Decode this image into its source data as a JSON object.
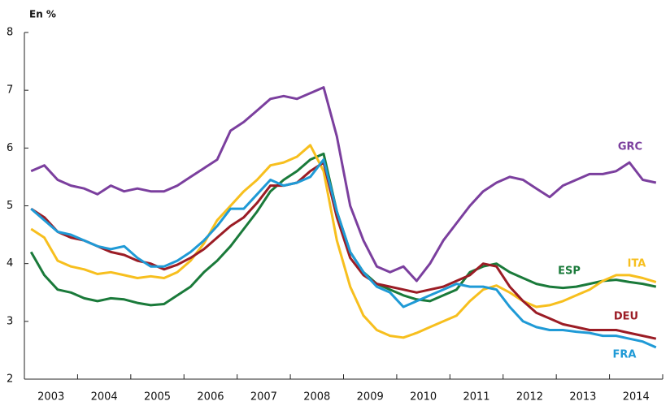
{
  "chart_data": {
    "type": "line",
    "unit_label": "En %",
    "categories": [
      null,
      "2003",
      null,
      null,
      null,
      "2004",
      null,
      null,
      null,
      "2005",
      null,
      null,
      null,
      "2006",
      null,
      null,
      null,
      "2007",
      null,
      null,
      null,
      "2008",
      null,
      null,
      null,
      "2009",
      null,
      null,
      null,
      "2010",
      null,
      null,
      null,
      "2011",
      null,
      null,
      null,
      "2012",
      null,
      null,
      null,
      "2013",
      null,
      null,
      null,
      "2014",
      null,
      null
    ],
    "series": [
      {
        "name": "GRC",
        "color": "#7b3f9e",
        "values": [
          5.6,
          5.7,
          5.45,
          5.35,
          5.3,
          5.2,
          5.35,
          5.25,
          5.3,
          5.25,
          5.25,
          5.35,
          5.5,
          5.65,
          5.8,
          6.3,
          6.45,
          6.65,
          6.85,
          6.9,
          6.85,
          6.95,
          7.05,
          6.2,
          5.0,
          4.4,
          3.95,
          3.85,
          3.95,
          3.7,
          4.0,
          4.4,
          4.7,
          5.0,
          5.25,
          5.4,
          5.5,
          5.45,
          5.3,
          5.15,
          5.35,
          5.45,
          5.55,
          5.55,
          5.6,
          5.75,
          5.45,
          5.4
        ]
      },
      {
        "name": "ESP",
        "color": "#1a7a3a",
        "values": [
          4.2,
          3.8,
          3.55,
          3.5,
          3.4,
          3.35,
          3.4,
          3.38,
          3.32,
          3.28,
          3.3,
          3.45,
          3.6,
          3.85,
          4.05,
          4.3,
          4.6,
          4.9,
          5.25,
          5.45,
          5.6,
          5.8,
          5.9,
          4.9,
          4.2,
          3.85,
          3.65,
          3.55,
          3.45,
          3.38,
          3.35,
          3.45,
          3.55,
          3.85,
          3.95,
          4.0,
          3.85,
          3.75,
          3.65,
          3.6,
          3.58,
          3.6,
          3.65,
          3.7,
          3.72,
          3.68,
          3.65,
          3.6
        ]
      },
      {
        "name": "ITA",
        "color": "#f7bf1e",
        "values": [
          4.6,
          4.45,
          4.05,
          3.95,
          3.9,
          3.82,
          3.85,
          3.8,
          3.75,
          3.78,
          3.75,
          3.85,
          4.05,
          4.35,
          4.75,
          5.0,
          5.25,
          5.45,
          5.7,
          5.75,
          5.85,
          6.05,
          5.6,
          4.4,
          3.6,
          3.1,
          2.85,
          2.75,
          2.72,
          2.8,
          2.9,
          3.0,
          3.1,
          3.35,
          3.55,
          3.62,
          3.5,
          3.35,
          3.25,
          3.28,
          3.35,
          3.45,
          3.55,
          3.7,
          3.8,
          3.8,
          3.75,
          3.68
        ]
      },
      {
        "name": "DEU",
        "color": "#9b1c25",
        "values": [
          4.95,
          4.8,
          4.55,
          4.45,
          4.4,
          4.3,
          4.2,
          4.15,
          4.05,
          4.0,
          3.9,
          3.98,
          4.1,
          4.25,
          4.45,
          4.65,
          4.8,
          5.05,
          5.35,
          5.35,
          5.4,
          5.6,
          5.75,
          4.8,
          4.1,
          3.8,
          3.65,
          3.6,
          3.55,
          3.5,
          3.55,
          3.6,
          3.7,
          3.8,
          4.0,
          3.95,
          3.6,
          3.35,
          3.15,
          3.05,
          2.95,
          2.9,
          2.85,
          2.85,
          2.85,
          2.8,
          2.75,
          2.7
        ]
      },
      {
        "name": "FRA",
        "color": "#1f9ad6",
        "values": [
          4.95,
          4.75,
          4.55,
          4.5,
          4.4,
          4.3,
          4.25,
          4.3,
          4.1,
          3.95,
          3.95,
          4.05,
          4.2,
          4.4,
          4.65,
          4.95,
          4.95,
          5.2,
          5.45,
          5.35,
          5.4,
          5.5,
          5.8,
          4.9,
          4.2,
          3.85,
          3.6,
          3.5,
          3.25,
          3.35,
          3.45,
          3.55,
          3.65,
          3.6,
          3.6,
          3.55,
          3.25,
          3.0,
          2.9,
          2.85,
          2.85,
          2.82,
          2.8,
          2.75,
          2.75,
          2.7,
          2.65,
          2.55
        ]
      }
    ],
    "ylim": [
      2,
      8
    ],
    "yticks": [
      2,
      3,
      4,
      5,
      6,
      7,
      8
    ],
    "grid": false
  }
}
